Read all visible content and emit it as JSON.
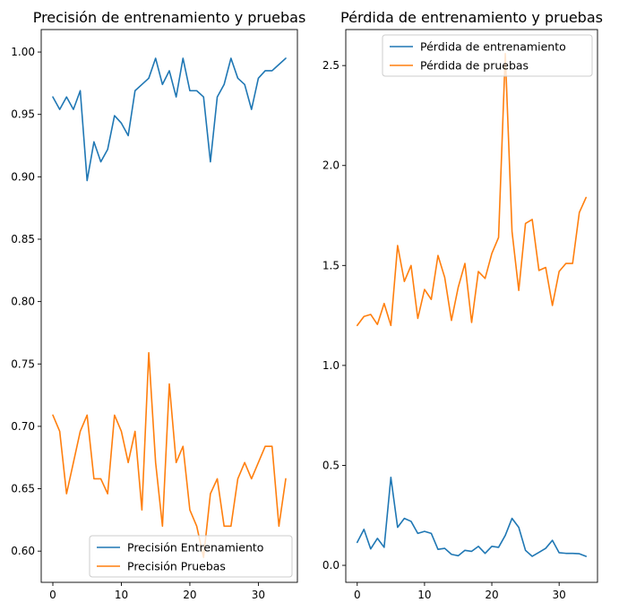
{
  "chart_data": [
    {
      "type": "line",
      "title": "Precisión de entrenamiento y pruebas",
      "xlim": [
        -1.7,
        35.7
      ],
      "ylim": [
        0.575,
        1.018
      ],
      "xticks": [
        0,
        10,
        20,
        30
      ],
      "xtick_labels": [
        "0",
        "10",
        "20",
        "30"
      ],
      "yticks": [
        0.6,
        0.65,
        0.7,
        0.75,
        0.8,
        0.85,
        0.9,
        0.95,
        1.0
      ],
      "ytick_labels": [
        "0.60",
        "0.65",
        "0.70",
        "0.75",
        "0.80",
        "0.85",
        "0.90",
        "0.95",
        "1.00"
      ],
      "legend_position": "lower-right",
      "x": [
        0,
        1,
        2,
        3,
        4,
        5,
        6,
        7,
        8,
        9,
        10,
        11,
        12,
        13,
        14,
        15,
        16,
        17,
        18,
        19,
        20,
        21,
        22,
        23,
        24,
        25,
        26,
        27,
        28,
        29,
        30,
        31,
        32,
        33,
        34
      ],
      "series": [
        {
          "name": "Precisión Entrenamiento",
          "color": "#1f77b4",
          "values": [
            0.964,
            0.954,
            0.964,
            0.954,
            0.969,
            0.897,
            0.928,
            0.912,
            0.922,
            0.949,
            0.943,
            0.933,
            0.969,
            0.974,
            0.979,
            0.995,
            0.974,
            0.985,
            0.964,
            0.995,
            0.969,
            0.969,
            0.964,
            0.912,
            0.964,
            0.974,
            0.995,
            0.979,
            0.974,
            0.954,
            0.979,
            0.985,
            0.985,
            0.99,
            0.995
          ]
        },
        {
          "name": "Precisión Pruebas",
          "color": "#ff7f0e",
          "values": [
            0.709,
            0.696,
            0.646,
            0.671,
            0.696,
            0.709,
            0.658,
            0.658,
            0.646,
            0.709,
            0.696,
            0.671,
            0.696,
            0.633,
            0.759,
            0.671,
            0.62,
            0.734,
            0.671,
            0.684,
            0.633,
            0.62,
            0.595,
            0.646,
            0.658,
            0.62,
            0.62,
            0.658,
            0.671,
            0.658,
            0.671,
            0.684,
            0.684,
            0.62,
            0.658
          ]
        }
      ]
    },
    {
      "type": "line",
      "title": "Pérdida de entrenamiento y pruebas",
      "xlim": [
        -1.7,
        35.7
      ],
      "ylim": [
        -0.085,
        2.68
      ],
      "xticks": [
        0,
        10,
        20,
        30
      ],
      "xtick_labels": [
        "0",
        "10",
        "20",
        "30"
      ],
      "yticks": [
        0.0,
        0.5,
        1.0,
        1.5,
        2.0,
        2.5
      ],
      "ytick_labels": [
        "0.0",
        "0.5",
        "1.0",
        "1.5",
        "2.0",
        "2.5"
      ],
      "legend_position": "upper-right",
      "x": [
        0,
        1,
        2,
        3,
        4,
        5,
        6,
        7,
        8,
        9,
        10,
        11,
        12,
        13,
        14,
        15,
        16,
        17,
        18,
        19,
        20,
        21,
        22,
        23,
        24,
        25,
        26,
        27,
        28,
        29,
        30,
        31,
        32,
        33,
        34
      ],
      "series": [
        {
          "name": "Pérdida de entrenamiento",
          "color": "#1f77b4",
          "values": [
            0.115,
            0.18,
            0.082,
            0.135,
            0.09,
            0.44,
            0.19,
            0.235,
            0.22,
            0.16,
            0.17,
            0.16,
            0.08,
            0.085,
            0.055,
            0.048,
            0.075,
            0.07,
            0.095,
            0.06,
            0.095,
            0.09,
            0.15,
            0.235,
            0.19,
            0.075,
            0.045,
            0.065,
            0.085,
            0.125,
            0.063,
            0.06,
            0.06,
            0.058,
            0.045
          ]
        },
        {
          "name": "Pérdida de pruebas",
          "color": "#ff7f0e",
          "values": [
            1.2,
            1.245,
            1.255,
            1.205,
            1.31,
            1.2,
            1.6,
            1.42,
            1.5,
            1.235,
            1.38,
            1.33,
            1.55,
            1.44,
            1.225,
            1.39,
            1.51,
            1.215,
            1.47,
            1.435,
            1.56,
            1.64,
            2.56,
            1.67,
            1.375,
            1.71,
            1.73,
            1.475,
            1.49,
            1.3,
            1.47,
            1.51,
            1.51,
            1.765,
            1.84
          ]
        }
      ]
    }
  ]
}
